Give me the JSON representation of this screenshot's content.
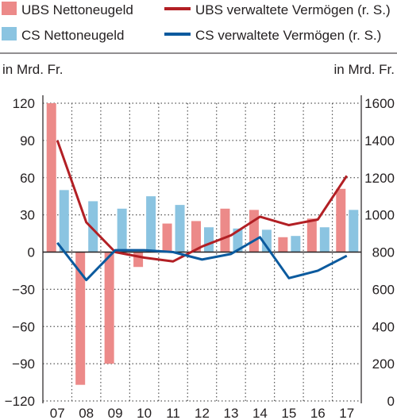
{
  "chart_data": {
    "type": "bar",
    "categories": [
      "07",
      "08",
      "09",
      "10",
      "11",
      "12",
      "13",
      "14",
      "15",
      "16",
      "17"
    ],
    "series": [
      {
        "name": "UBS Nettoneugeld",
        "kind": "bar",
        "axis": "left",
        "color": "#ec8a89",
        "values": [
          120,
          -107,
          -90,
          -12,
          23,
          25,
          35,
          34,
          12,
          27,
          51
        ]
      },
      {
        "name": "CS Nettoneugeld",
        "kind": "bar",
        "axis": "left",
        "color": "#8bc4e1",
        "values": [
          50,
          41,
          35,
          45,
          38,
          20,
          19,
          18,
          13,
          20,
          34
        ]
      },
      {
        "name": "UBS verwaltete Vermögen (r. S.)",
        "kind": "line",
        "axis": "right",
        "color": "#b21f24",
        "values": [
          1400,
          960,
          800,
          770,
          750,
          830,
          890,
          990,
          945,
          975,
          1210
        ]
      },
      {
        "name": "CS verwaltete Vermögen (r. S.)",
        "kind": "line",
        "axis": "right",
        "color": "#0b5a9e",
        "values": [
          850,
          650,
          810,
          810,
          800,
          760,
          790,
          880,
          660,
          700,
          780
        ]
      }
    ],
    "ylabel_left": "in Mrd. Fr.",
    "ylabel_right": "in Mrd. Fr.",
    "ylim_left": [
      -120,
      120
    ],
    "yticks_left": [
      120,
      90,
      60,
      30,
      0,
      -30,
      -60,
      -90,
      -120
    ],
    "ylim_right": [
      0,
      1600
    ],
    "yticks_right": [
      1600,
      1400,
      1200,
      1000,
      800,
      600,
      400,
      200,
      0
    ],
    "grid": "dotted",
    "legend_position": "top"
  }
}
